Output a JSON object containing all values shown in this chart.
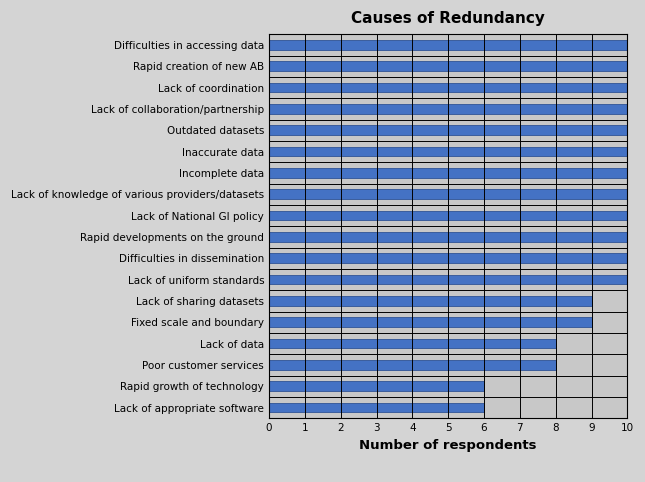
{
  "title": "Causes of Redundancy",
  "xlabel": "Number of respondents",
  "categories": [
    "Difficulties in accessing data",
    "Rapid creation of new AB",
    "Lack of coordination",
    "Lack of collaboration/partnership",
    "Outdated datasets",
    "Inaccurate data",
    "Incomplete data",
    "Lack of knowledge of various providers/datasets",
    "Lack of National GI policy",
    "Rapid developments on the ground",
    "Difficulties in dissemination",
    "Lack of uniform standards",
    "Lack of sharing datasets",
    "Fixed scale and boundary",
    "Lack of data",
    "Poor customer services",
    "Rapid growth of technology",
    "Lack of appropriate software"
  ],
  "values": [
    10,
    10,
    10,
    10,
    10,
    10,
    10,
    10,
    10,
    10,
    10,
    10,
    9,
    9,
    8,
    8,
    6,
    6
  ],
  "bar_color": "#4472C4",
  "bar_edge_color": "#2F5496",
  "background_color": "#D4D4D4",
  "plot_bg_color": "#C8C8C8",
  "xlim": [
    0,
    10
  ],
  "xticks": [
    0,
    1,
    2,
    3,
    4,
    5,
    6,
    7,
    8,
    9,
    10
  ],
  "title_fontsize": 11,
  "label_fontsize": 7.5,
  "xlabel_fontsize": 9.5,
  "bar_height": 0.45,
  "bar_gap": 0.55
}
